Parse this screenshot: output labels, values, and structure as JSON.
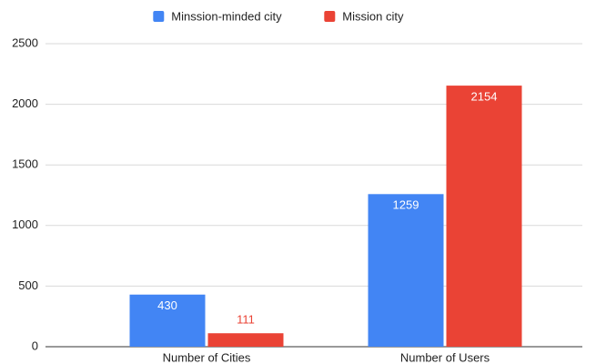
{
  "chart_data": {
    "type": "bar",
    "categories": [
      "Number of Cities",
      "Number of Users"
    ],
    "series": [
      {
        "name": "Minssion-minded city",
        "color": "#4285f4",
        "values": [
          430,
          1259
        ]
      },
      {
        "name": "Mission city",
        "color": "#ea4335",
        "values": [
          111,
          2154
        ]
      }
    ],
    "ylim": [
      0,
      2500
    ],
    "yticks": [
      0,
      500,
      1000,
      1500,
      2000,
      2500
    ],
    "grid": true,
    "legend": "top"
  }
}
